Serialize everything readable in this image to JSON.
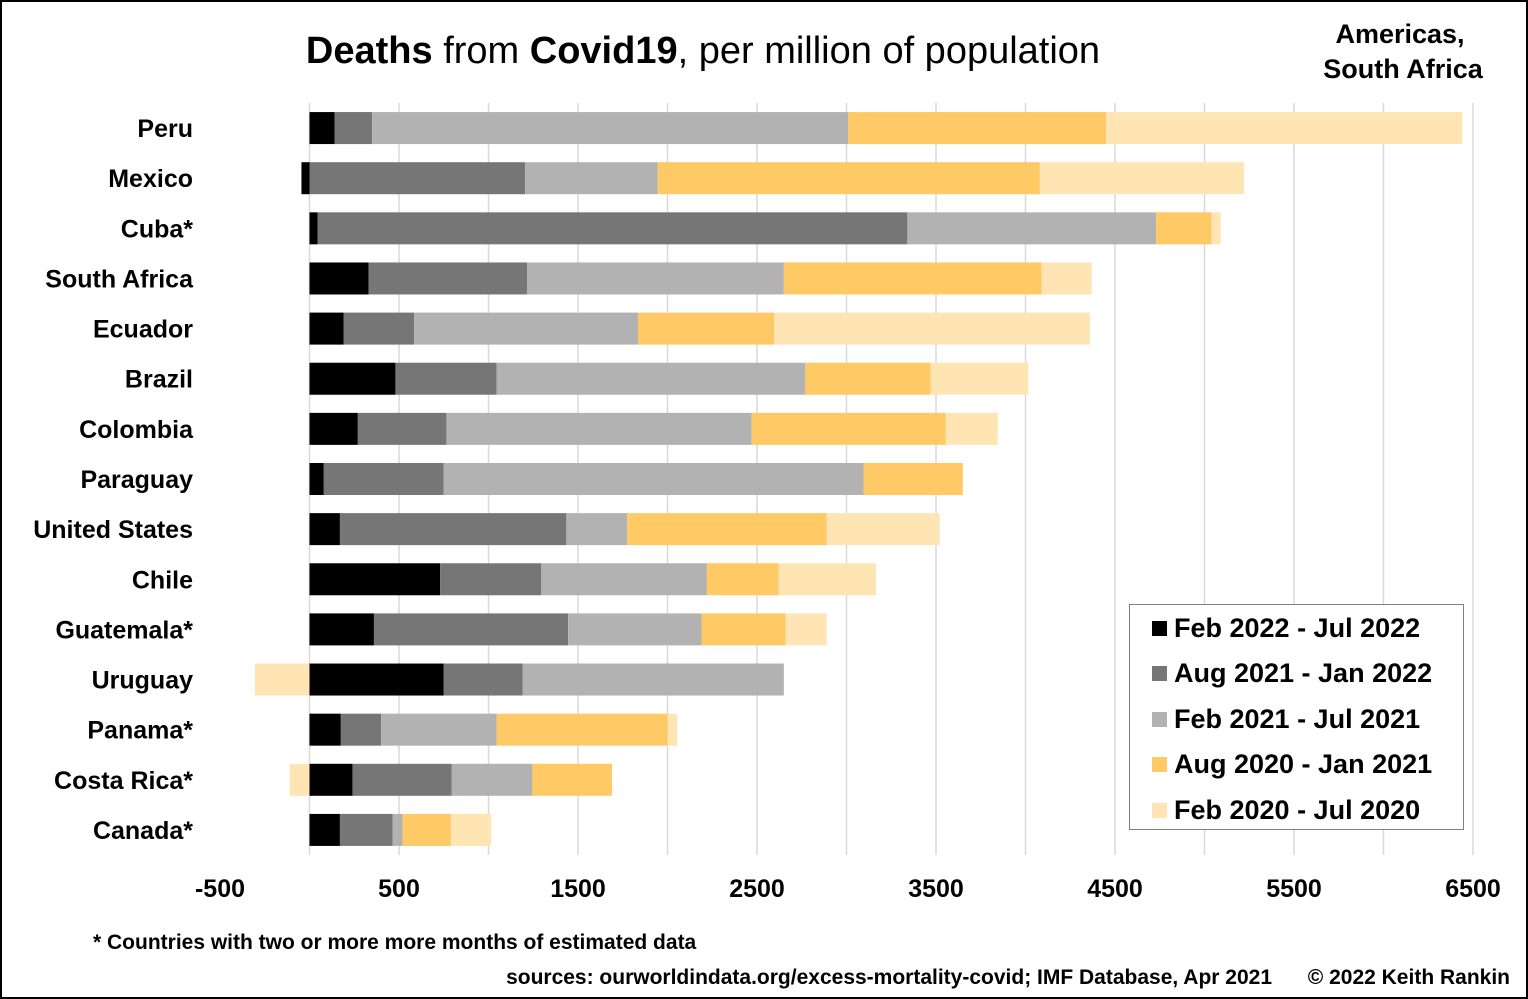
{
  "title": {
    "part1": "Deaths",
    "part2": " from ",
    "part3": "Covid19",
    "part4": ", per million of population"
  },
  "region_line1": "Americas,",
  "region_line2": "South Africa",
  "footnote": "* Countries with two or more more months of estimated data",
  "sources": "sources: ourworldindata.org/excess-mortality-covid; IMF Database, Apr 2021",
  "copyright": "© 2022 Keith Rankin",
  "colors": {
    "feb2022": "#000000",
    "aug2021": "#767676",
    "feb2021": "#b2b2b2",
    "aug2020": "#ffc966",
    "feb2020": "#ffe5b4",
    "grid": "#d9d9d9"
  },
  "chart_data": {
    "type": "bar",
    "orientation": "horizontal",
    "stacked": true,
    "categories": [
      "Peru",
      "Mexico",
      "Cuba*",
      "South Africa",
      "Ecuador",
      "Brazil",
      "Colombia",
      "Paraguay",
      "United States",
      "Chile",
      "Guatemala*",
      "Uruguay",
      "Panama*",
      "Costa Rica*",
      "Canada*"
    ],
    "series": [
      {
        "name": "Feb 2022 - Jul 2022",
        "values": [
          140,
          -45,
          45,
          330,
          190,
          480,
          270,
          80,
          170,
          730,
          360,
          750,
          175,
          240,
          170
        ]
      },
      {
        "name": "Aug 2021 - Jan 2022",
        "values": [
          210,
          1205,
          3295,
          885,
          395,
          565,
          495,
          670,
          1265,
          565,
          1085,
          440,
          225,
          555,
          295
        ]
      },
      {
        "name": "Feb 2021 - Jul 2021",
        "values": [
          2660,
          740,
          1390,
          1435,
          1250,
          1725,
          1705,
          2345,
          340,
          925,
          745,
          1460,
          645,
          450,
          55
        ]
      },
      {
        "name": "Aug 2020 - Jan 2021",
        "values": [
          1440,
          2135,
          310,
          1440,
          760,
          700,
          1085,
          555,
          1115,
          400,
          470,
          0,
          955,
          445,
          270
        ]
      },
      {
        "name": "Feb 2020 - Jul 2020",
        "values": [
          1990,
          1140,
          50,
          280,
          1765,
          545,
          290,
          0,
          630,
          545,
          230,
          -305,
          55,
          -110,
          225
        ]
      }
    ],
    "xlim": [
      -500,
      6500
    ],
    "xticks": [
      -500,
      500,
      1500,
      2500,
      3500,
      4500,
      5500,
      6500
    ],
    "grid": true,
    "legend_position": "bottom-right"
  }
}
